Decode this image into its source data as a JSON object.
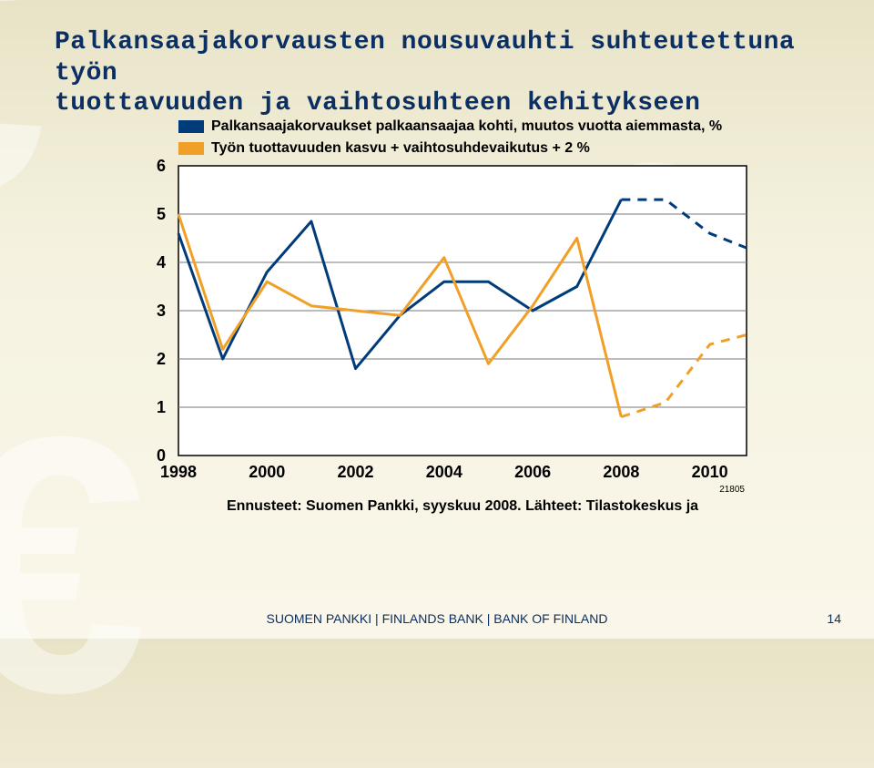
{
  "title_line1": "Palkansaajakorvausten nousuvauhti suhteutettuna työn",
  "title_line2": "tuottavuuden ja vaihtosuhteen kehitykseen",
  "legend": {
    "series1": {
      "label": "Palkansaajakorvaukset palkaansaajaa kohti, muutos vuotta aiemmasta, %",
      "color": "#003b7a"
    },
    "series2": {
      "label": "Työn tuottavuuden kasvu + vaihtosuhdevaikutus + 2 %",
      "color": "#f0a028"
    }
  },
  "chart": {
    "type": "line",
    "background_color": "#ffffff",
    "grid_color": "#7a7a7a",
    "border_color": "#000000",
    "axis_fontsize": 18,
    "axis_fontweight": "bold",
    "xlim": [
      1998,
      2010.83
    ],
    "ylim": [
      0,
      6
    ],
    "ytick_step": 1,
    "yticks": [
      "0",
      "1",
      "2",
      "3",
      "4",
      "5",
      "6"
    ],
    "xticks": [
      1998,
      2000,
      2002,
      2004,
      2006,
      2008,
      2010
    ],
    "plot_note": "21805",
    "line_width": 3,
    "series": [
      {
        "name": "series1",
        "color": "#003b7a",
        "dash_from_index": 10,
        "points": [
          [
            1998.0,
            4.6
          ],
          [
            1999.0,
            2.0
          ],
          [
            2000.0,
            3.8
          ],
          [
            2001.0,
            4.85
          ],
          [
            2002.0,
            1.8
          ],
          [
            2003.0,
            2.9
          ],
          [
            2004.0,
            3.6
          ],
          [
            2005.0,
            3.6
          ],
          [
            2006.0,
            3.0
          ],
          [
            2007.0,
            3.5
          ],
          [
            2008.0,
            5.3
          ],
          [
            2009.0,
            5.3
          ],
          [
            2010.0,
            4.6
          ],
          [
            2010.83,
            4.3
          ]
        ]
      },
      {
        "name": "series2",
        "color": "#f0a028",
        "dash_from_index": 10,
        "points": [
          [
            1998.0,
            5.0
          ],
          [
            1999.0,
            2.2
          ],
          [
            2000.0,
            3.6
          ],
          [
            2001.0,
            3.1
          ],
          [
            2002.0,
            3.0
          ],
          [
            2003.0,
            2.9
          ],
          [
            2004.0,
            4.1
          ],
          [
            2005.0,
            1.9
          ],
          [
            2006.0,
            3.1
          ],
          [
            2007.0,
            4.5
          ],
          [
            2008.0,
            0.8
          ],
          [
            2009.0,
            1.1
          ],
          [
            2010.0,
            2.3
          ],
          [
            2010.83,
            2.5
          ]
        ]
      }
    ],
    "caption": "Ennusteet: Suomen Pankki, syyskuu 2008. Lähteet: Tilastokeskus ja"
  },
  "footer": "SUOMEN PANKKI | FINLANDS BANK | BANK OF FINLAND",
  "page_number": "14"
}
